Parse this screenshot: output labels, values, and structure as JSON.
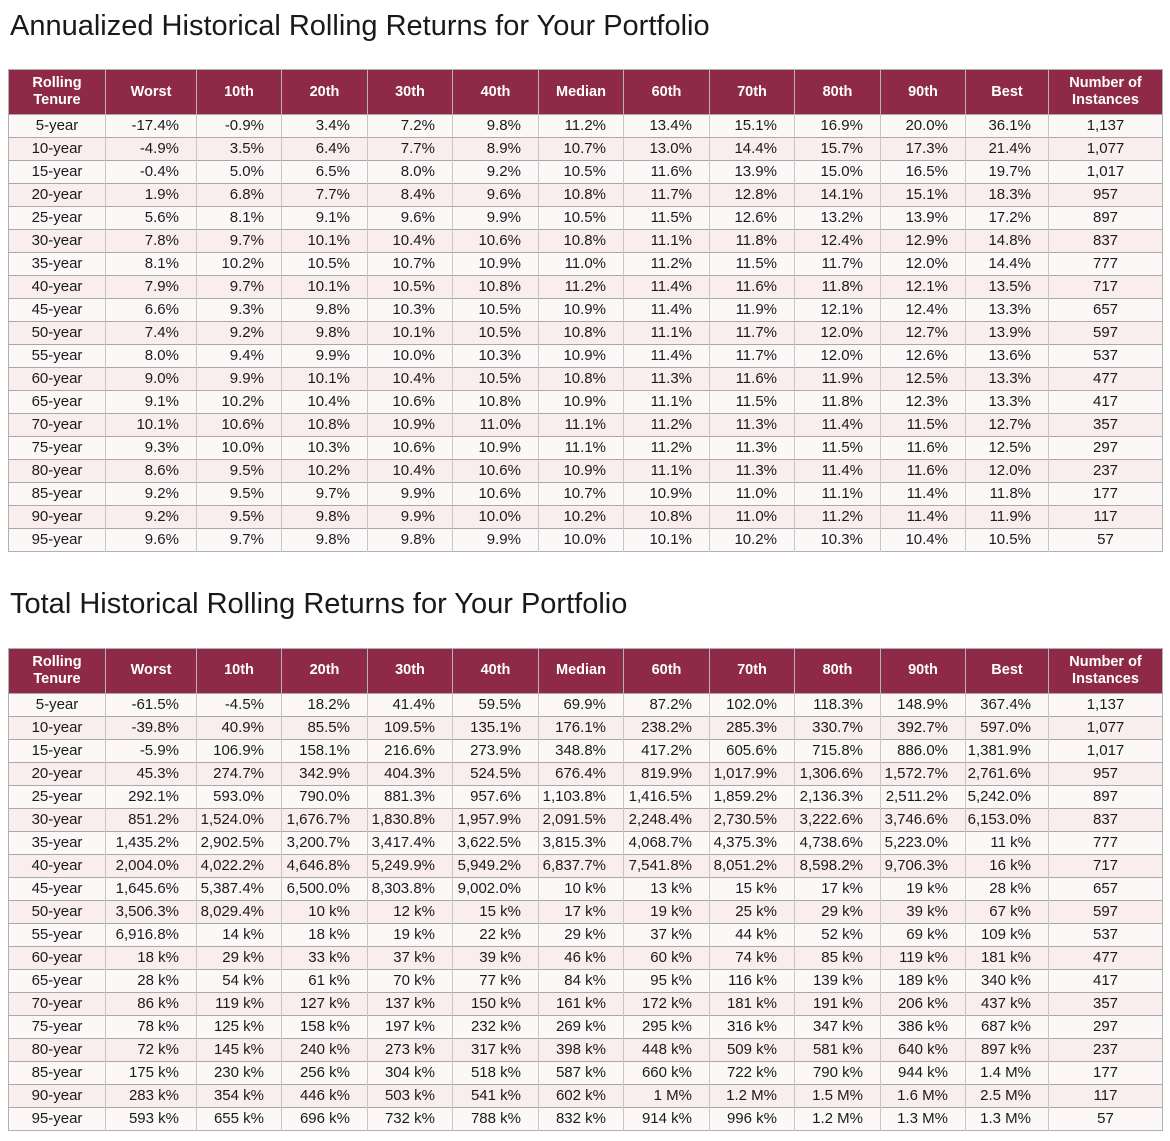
{
  "colors": {
    "header_bg": "#8e2a48",
    "header_text": "#ffffff",
    "row_base": "#fdf8f8",
    "row_alt": "#faeded"
  },
  "sections": [
    {
      "title": "Annualized Historical Rolling Returns for Your Portfolio",
      "table": {
        "columns": [
          "Rolling Tenure",
          "Worst",
          "10th",
          "20th",
          "30th",
          "40th",
          "Median",
          "60th",
          "70th",
          "80th",
          "90th",
          "Best",
          "Number of Instances"
        ],
        "rows": [
          [
            "5-year",
            "-17.4%",
            "-0.9%",
            "3.4%",
            "7.2%",
            "9.8%",
            "11.2%",
            "13.4%",
            "15.1%",
            "16.9%",
            "20.0%",
            "36.1%",
            "1,137"
          ],
          [
            "10-year",
            "-4.9%",
            "3.5%",
            "6.4%",
            "7.7%",
            "8.9%",
            "10.7%",
            "13.0%",
            "14.4%",
            "15.7%",
            "17.3%",
            "21.4%",
            "1,077"
          ],
          [
            "15-year",
            "-0.4%",
            "5.0%",
            "6.5%",
            "8.0%",
            "9.2%",
            "10.5%",
            "11.6%",
            "13.9%",
            "15.0%",
            "16.5%",
            "19.7%",
            "1,017"
          ],
          [
            "20-year",
            "1.9%",
            "6.8%",
            "7.7%",
            "8.4%",
            "9.6%",
            "10.8%",
            "11.7%",
            "12.8%",
            "14.1%",
            "15.1%",
            "18.3%",
            "957"
          ],
          [
            "25-year",
            "5.6%",
            "8.1%",
            "9.1%",
            "9.6%",
            "9.9%",
            "10.5%",
            "11.5%",
            "12.6%",
            "13.2%",
            "13.9%",
            "17.2%",
            "897"
          ],
          [
            "30-year",
            "7.8%",
            "9.7%",
            "10.1%",
            "10.4%",
            "10.6%",
            "10.8%",
            "11.1%",
            "11.8%",
            "12.4%",
            "12.9%",
            "14.8%",
            "837"
          ],
          [
            "35-year",
            "8.1%",
            "10.2%",
            "10.5%",
            "10.7%",
            "10.9%",
            "11.0%",
            "11.2%",
            "11.5%",
            "11.7%",
            "12.0%",
            "14.4%",
            "777"
          ],
          [
            "40-year",
            "7.9%",
            "9.7%",
            "10.1%",
            "10.5%",
            "10.8%",
            "11.2%",
            "11.4%",
            "11.6%",
            "11.8%",
            "12.1%",
            "13.5%",
            "717"
          ],
          [
            "45-year",
            "6.6%",
            "9.3%",
            "9.8%",
            "10.3%",
            "10.5%",
            "10.9%",
            "11.4%",
            "11.9%",
            "12.1%",
            "12.4%",
            "13.3%",
            "657"
          ],
          [
            "50-year",
            "7.4%",
            "9.2%",
            "9.8%",
            "10.1%",
            "10.5%",
            "10.8%",
            "11.1%",
            "11.7%",
            "12.0%",
            "12.7%",
            "13.9%",
            "597"
          ],
          [
            "55-year",
            "8.0%",
            "9.4%",
            "9.9%",
            "10.0%",
            "10.3%",
            "10.9%",
            "11.4%",
            "11.7%",
            "12.0%",
            "12.6%",
            "13.6%",
            "537"
          ],
          [
            "60-year",
            "9.0%",
            "9.9%",
            "10.1%",
            "10.4%",
            "10.5%",
            "10.8%",
            "11.3%",
            "11.6%",
            "11.9%",
            "12.5%",
            "13.3%",
            "477"
          ],
          [
            "65-year",
            "9.1%",
            "10.2%",
            "10.4%",
            "10.6%",
            "10.8%",
            "10.9%",
            "11.1%",
            "11.5%",
            "11.8%",
            "12.3%",
            "13.3%",
            "417"
          ],
          [
            "70-year",
            "10.1%",
            "10.6%",
            "10.8%",
            "10.9%",
            "11.0%",
            "11.1%",
            "11.2%",
            "11.3%",
            "11.4%",
            "11.5%",
            "12.7%",
            "357"
          ],
          [
            "75-year",
            "9.3%",
            "10.0%",
            "10.3%",
            "10.6%",
            "10.9%",
            "11.1%",
            "11.2%",
            "11.3%",
            "11.5%",
            "11.6%",
            "12.5%",
            "297"
          ],
          [
            "80-year",
            "8.6%",
            "9.5%",
            "10.2%",
            "10.4%",
            "10.6%",
            "10.9%",
            "11.1%",
            "11.3%",
            "11.4%",
            "11.6%",
            "12.0%",
            "237"
          ],
          [
            "85-year",
            "9.2%",
            "9.5%",
            "9.7%",
            "9.9%",
            "10.6%",
            "10.7%",
            "10.9%",
            "11.0%",
            "11.1%",
            "11.4%",
            "11.8%",
            "177"
          ],
          [
            "90-year",
            "9.2%",
            "9.5%",
            "9.8%",
            "9.9%",
            "10.0%",
            "10.2%",
            "10.8%",
            "11.0%",
            "11.2%",
            "11.4%",
            "11.9%",
            "117"
          ],
          [
            "95-year",
            "9.6%",
            "9.7%",
            "9.8%",
            "9.8%",
            "9.9%",
            "10.0%",
            "10.1%",
            "10.2%",
            "10.3%",
            "10.4%",
            "10.5%",
            "57"
          ]
        ]
      }
    },
    {
      "title": "Total Historical Rolling Returns for Your Portfolio",
      "table": {
        "columns": [
          "Rolling Tenure",
          "Worst",
          "10th",
          "20th",
          "30th",
          "40th",
          "Median",
          "60th",
          "70th",
          "80th",
          "90th",
          "Best",
          "Number of Instances"
        ],
        "rows": [
          [
            "5-year",
            "-61.5%",
            "-4.5%",
            "18.2%",
            "41.4%",
            "59.5%",
            "69.9%",
            "87.2%",
            "102.0%",
            "118.3%",
            "148.9%",
            "367.4%",
            "1,137"
          ],
          [
            "10-year",
            "-39.8%",
            "40.9%",
            "85.5%",
            "109.5%",
            "135.1%",
            "176.1%",
            "238.2%",
            "285.3%",
            "330.7%",
            "392.7%",
            "597.0%",
            "1,077"
          ],
          [
            "15-year",
            "-5.9%",
            "106.9%",
            "158.1%",
            "216.6%",
            "273.9%",
            "348.8%",
            "417.2%",
            "605.6%",
            "715.8%",
            "886.0%",
            "1,381.9%",
            "1,017"
          ],
          [
            "20-year",
            "45.3%",
            "274.7%",
            "342.9%",
            "404.3%",
            "524.5%",
            "676.4%",
            "819.9%",
            "1,017.9%",
            "1,306.6%",
            "1,572.7%",
            "2,761.6%",
            "957"
          ],
          [
            "25-year",
            "292.1%",
            "593.0%",
            "790.0%",
            "881.3%",
            "957.6%",
            "1,103.8%",
            "1,416.5%",
            "1,859.2%",
            "2,136.3%",
            "2,511.2%",
            "5,242.0%",
            "897"
          ],
          [
            "30-year",
            "851.2%",
            "1,524.0%",
            "1,676.7%",
            "1,830.8%",
            "1,957.9%",
            "2,091.5%",
            "2,248.4%",
            "2,730.5%",
            "3,222.6%",
            "3,746.6%",
            "6,153.0%",
            "837"
          ],
          [
            "35-year",
            "1,435.2%",
            "2,902.5%",
            "3,200.7%",
            "3,417.4%",
            "3,622.5%",
            "3,815.3%",
            "4,068.7%",
            "4,375.3%",
            "4,738.6%",
            "5,223.0%",
            "11 k%",
            "777"
          ],
          [
            "40-year",
            "2,004.0%",
            "4,022.2%",
            "4,646.8%",
            "5,249.9%",
            "5,949.2%",
            "6,837.7%",
            "7,541.8%",
            "8,051.2%",
            "8,598.2%",
            "9,706.3%",
            "16 k%",
            "717"
          ],
          [
            "45-year",
            "1,645.6%",
            "5,387.4%",
            "6,500.0%",
            "8,303.8%",
            "9,002.0%",
            "10 k%",
            "13 k%",
            "15 k%",
            "17 k%",
            "19 k%",
            "28 k%",
            "657"
          ],
          [
            "50-year",
            "3,506.3%",
            "8,029.4%",
            "10 k%",
            "12 k%",
            "15 k%",
            "17 k%",
            "19 k%",
            "25 k%",
            "29 k%",
            "39 k%",
            "67 k%",
            "597"
          ],
          [
            "55-year",
            "6,916.8%",
            "14 k%",
            "18 k%",
            "19 k%",
            "22 k%",
            "29 k%",
            "37 k%",
            "44 k%",
            "52 k%",
            "69 k%",
            "109 k%",
            "537"
          ],
          [
            "60-year",
            "18 k%",
            "29 k%",
            "33 k%",
            "37 k%",
            "39 k%",
            "46 k%",
            "60 k%",
            "74 k%",
            "85 k%",
            "119 k%",
            "181 k%",
            "477"
          ],
          [
            "65-year",
            "28 k%",
            "54 k%",
            "61 k%",
            "70 k%",
            "77 k%",
            "84 k%",
            "95 k%",
            "116 k%",
            "139 k%",
            "189 k%",
            "340 k%",
            "417"
          ],
          [
            "70-year",
            "86 k%",
            "119 k%",
            "127 k%",
            "137 k%",
            "150 k%",
            "161 k%",
            "172 k%",
            "181 k%",
            "191 k%",
            "206 k%",
            "437 k%",
            "357"
          ],
          [
            "75-year",
            "78 k%",
            "125 k%",
            "158 k%",
            "197 k%",
            "232 k%",
            "269 k%",
            "295 k%",
            "316 k%",
            "347 k%",
            "386 k%",
            "687 k%",
            "297"
          ],
          [
            "80-year",
            "72 k%",
            "145 k%",
            "240 k%",
            "273 k%",
            "317 k%",
            "398 k%",
            "448 k%",
            "509 k%",
            "581 k%",
            "640 k%",
            "897 k%",
            "237"
          ],
          [
            "85-year",
            "175 k%",
            "230 k%",
            "256 k%",
            "304 k%",
            "518 k%",
            "587 k%",
            "660 k%",
            "722 k%",
            "790 k%",
            "944 k%",
            "1.4 M%",
            "177"
          ],
          [
            "90-year",
            "283 k%",
            "354 k%",
            "446 k%",
            "503 k%",
            "541 k%",
            "602 k%",
            "1 M%",
            "1.2 M%",
            "1.5 M%",
            "1.6 M%",
            "2.5 M%",
            "117"
          ],
          [
            "95-year",
            "593 k%",
            "655 k%",
            "696 k%",
            "732 k%",
            "788 k%",
            "832 k%",
            "914 k%",
            "996 k%",
            "1.2 M%",
            "1.3 M%",
            "1.3 M%",
            "57"
          ]
        ]
      }
    }
  ]
}
